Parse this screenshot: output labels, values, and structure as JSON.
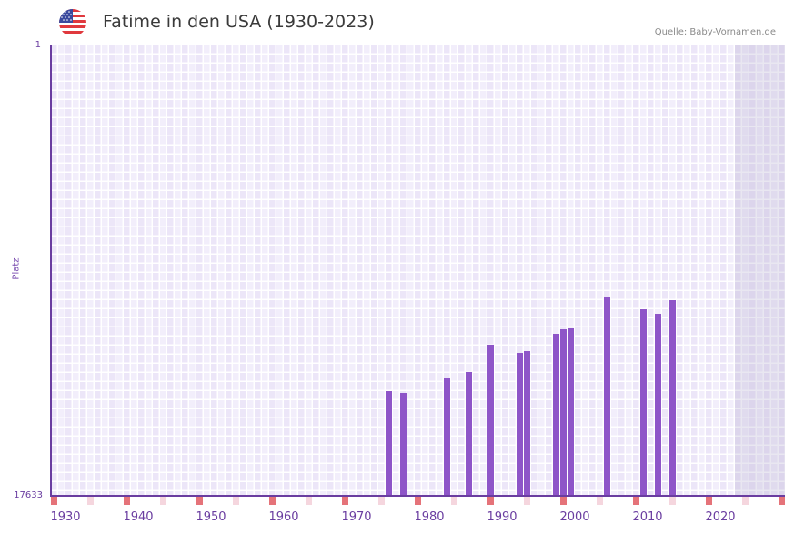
{
  "header": {
    "title": "Fatime in den USA (1930-2023)",
    "source": "Quelle: Baby-Vornamen.de",
    "flag_icon": "us-flag-icon"
  },
  "colors": {
    "bar": "#8e55c8",
    "axis": "#6a3da0",
    "decade_marker": "#e57379",
    "half_decade_marker": "#f5d6de",
    "grid_bg_a": "#f2eefb",
    "grid_bg_b": "#ece6f8",
    "future_shade": "#e3dfee"
  },
  "axes": {
    "y_top_label": "1",
    "y_bottom_label": "17633",
    "y_title": "Platz",
    "x_labels": [
      "1930",
      "1940",
      "1950",
      "1960",
      "1970",
      "1980",
      "1990",
      "2000",
      "2010",
      "2020"
    ]
  },
  "chart_data": {
    "type": "bar",
    "title": "Fatime in den USA (1930-2023)",
    "xlabel": "",
    "ylabel": "Platz",
    "ylim": [
      1,
      17633
    ],
    "y_inverted": true,
    "x_range": [
      1928,
      2028
    ],
    "x": [
      1974,
      1976,
      1982,
      1985,
      1988,
      1992,
      1993,
      1997,
      1998,
      1999,
      2004,
      2009,
      2011,
      2013
    ],
    "values": [
      13540,
      13610,
      13040,
      12790,
      11720,
      12040,
      11970,
      11290,
      11110,
      11080,
      9870,
      10330,
      10510,
      9980
    ],
    "grid": true,
    "legend": null,
    "source": "Quelle: Baby-Vornamen.de"
  }
}
